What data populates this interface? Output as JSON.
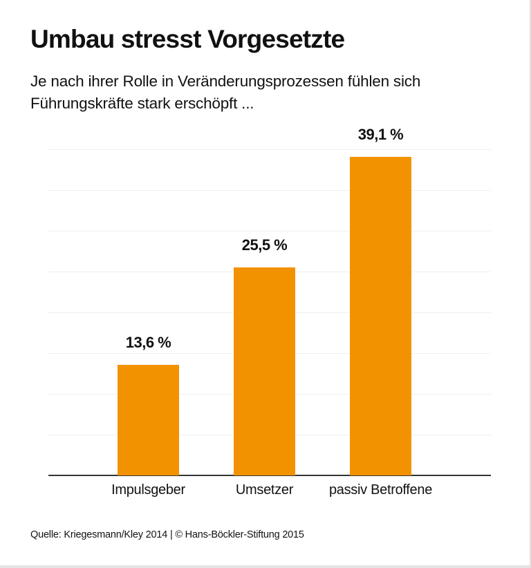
{
  "header": {
    "title": "Umbau stresst Vorgesetzte",
    "subtitle": "Je nach ihrer Rolle in Veränderungsprozessen fühlen sich Führungskräfte stark erschöpft ..."
  },
  "footer": {
    "source": "Quelle: Kriegesmann/Kley 2014 | © Hans-Böckler-Stiftung 2015"
  },
  "colors": {
    "bar": "#f39200",
    "gridline": "#efefef",
    "axis": "#333333"
  },
  "chart_data": {
    "type": "bar",
    "title": "Umbau stresst Vorgesetzte",
    "subtitle": "Je nach ihrer Rolle in Veränderungsprozessen fühlen sich Führungskräfte stark erschöpft ...",
    "categories": [
      "Impulsgeber",
      "Umsetzer",
      "passiv Betroffene"
    ],
    "values": [
      13.6,
      25.5,
      39.1
    ],
    "value_labels": [
      "13,6 %",
      "25,5 %",
      "39,1 %"
    ],
    "unit": "%",
    "xlabel": "",
    "ylabel": "",
    "ylim": [
      0,
      40
    ],
    "grid": true,
    "grid_step": 5,
    "legend": null,
    "source": "Quelle: Kriegesmann/Kley 2014 | © Hans-Böckler-Stiftung 2015"
  }
}
